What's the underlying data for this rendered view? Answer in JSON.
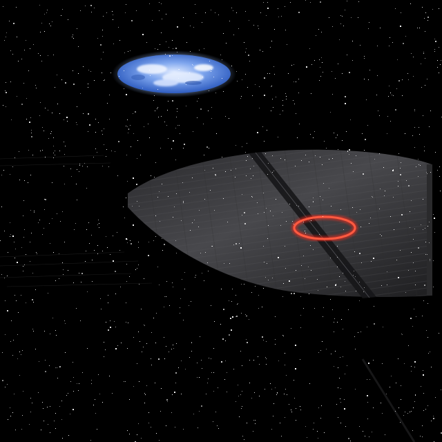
{
  "scene": {
    "kind": "space-view",
    "star_count": 1400,
    "colors": {
      "space": "#000000",
      "star": "#ffffff",
      "planet_ocean": "#4f7fd9",
      "planet_cloud": "#e8f0ff",
      "planet_glow": "#9fc2ff",
      "station_hull": "#3a3a3d",
      "station_hull_light": "#58585c",
      "trench": "#1c1c1e",
      "target_ring": "#ff2a1a"
    }
  },
  "planet": {
    "name": "planet",
    "icon": "planet-icon"
  },
  "station": {
    "name": "space-station",
    "icon": "station-icon"
  },
  "target_marker": {
    "name": "target-reticle",
    "icon": "target-ring-icon",
    "shape": "ellipse"
  }
}
